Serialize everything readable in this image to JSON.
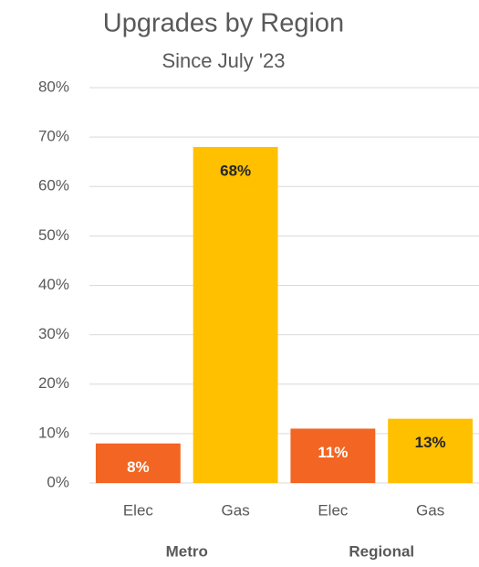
{
  "chart_data": {
    "type": "bar",
    "title": "Upgrades by Region",
    "subtitle": "Since July '23",
    "categories": [
      "Elec",
      "Gas",
      "Elec",
      "Gas"
    ],
    "group_labels": [
      "Metro",
      "Regional"
    ],
    "values": [
      8,
      68,
      11,
      13
    ],
    "value_labels": [
      "8%",
      "68%",
      "11%",
      "13%"
    ],
    "colors": [
      "#f26522",
      "#ffc000",
      "#f26522",
      "#ffc000"
    ],
    "label_colors": [
      "#ffffff",
      "#262626",
      "#ffffff",
      "#262626"
    ],
    "ylim": [
      0,
      80
    ],
    "yticks": [
      {
        "value": 0,
        "label": "0%"
      },
      {
        "value": 10,
        "label": "10%"
      },
      {
        "value": 20,
        "label": "20%"
      },
      {
        "value": 30,
        "label": "30%"
      },
      {
        "value": 40,
        "label": "40%"
      },
      {
        "value": 50,
        "label": "50%"
      },
      {
        "value": 60,
        "label": "60%"
      },
      {
        "value": 70,
        "label": "70%"
      },
      {
        "value": 80,
        "label": "80%"
      }
    ],
    "grid": true
  }
}
